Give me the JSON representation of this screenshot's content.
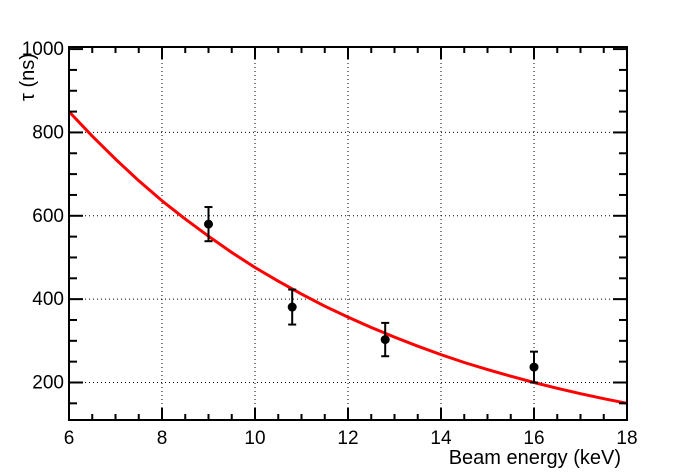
{
  "chart_data": {
    "type": "scatter",
    "title": "",
    "xlabel": "Beam energy (keV)",
    "ylabel": "τ (ns)",
    "xlim": [
      6,
      18
    ],
    "ylim": [
      110,
      1005
    ],
    "x_major_ticks": [
      6,
      8,
      10,
      12,
      14,
      16,
      18
    ],
    "x_tick_labels": [
      "6",
      "8",
      "10",
      "12",
      "14",
      "16",
      "18"
    ],
    "x_minor_step": 0.5,
    "y_major_ticks": [
      200,
      400,
      600,
      800,
      1000
    ],
    "y_tick_labels": [
      "200",
      "400",
      "600",
      "800",
      "1000"
    ],
    "y_minor_step": 50,
    "grid": "dotted black lines at major divisions, both axes",
    "legend": "none",
    "series": [
      {
        "name": "measured-lifetime-points",
        "type": "scatter",
        "marker": "filled-circle",
        "color": "#000000",
        "x": [
          9.0,
          10.8,
          12.8,
          16.0
        ],
        "y": [
          580,
          381,
          303,
          237
        ],
        "y_err": [
          41,
          42,
          40,
          37
        ]
      },
      {
        "name": "fit-curve",
        "type": "line",
        "color": "#ff0000",
        "model": "exponential decay, tau ~ 850*exp(-(E-6)/6.9)",
        "x": [
          6,
          6.5,
          7,
          7.5,
          8,
          8.5,
          9,
          9.5,
          10,
          10.5,
          11,
          11.5,
          12,
          12.5,
          13,
          13.5,
          14,
          14.5,
          15,
          15.5,
          16,
          16.5,
          17,
          17.5,
          18
        ],
        "y": [
          850,
          791,
          736,
          684,
          636,
          592,
          551,
          512,
          476,
          443,
          412,
          383,
          357,
          332,
          309,
          287,
          267,
          248,
          231,
          215,
          200,
          186,
          173,
          161,
          150
        ]
      }
    ]
  },
  "colors": {
    "background": "#ffffff",
    "frame": "#000000",
    "grid": "#000000",
    "curve": "#ff0000",
    "points": "#000000",
    "text": "#000000"
  }
}
